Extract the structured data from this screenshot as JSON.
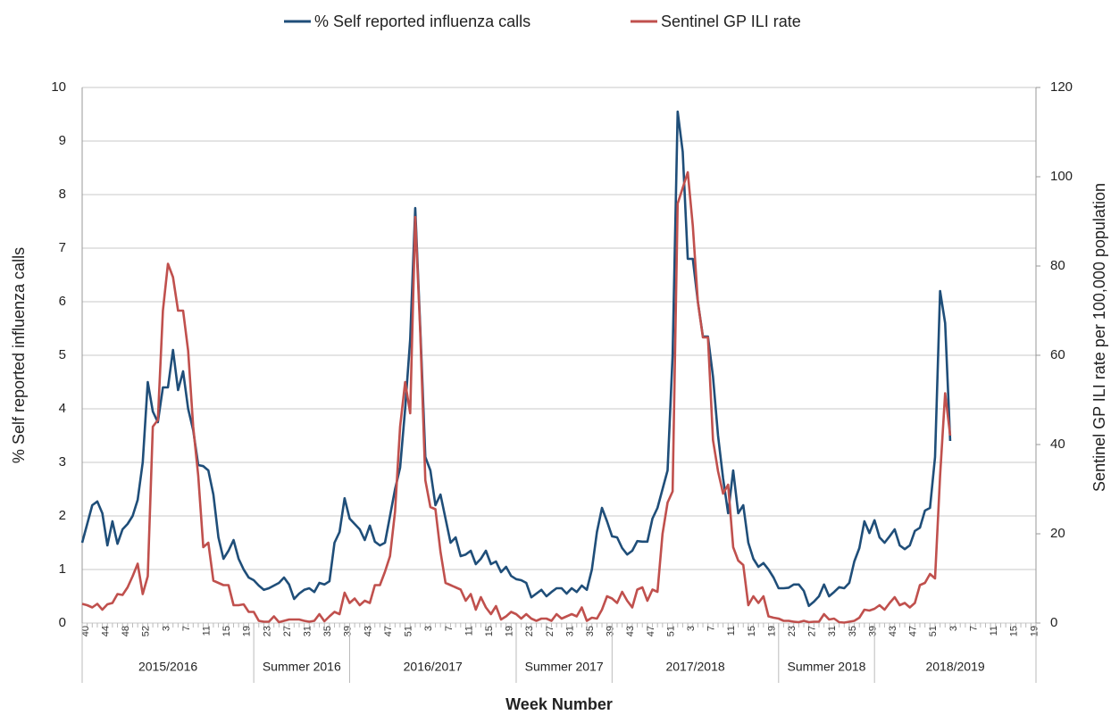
{
  "chart_data": {
    "type": "line",
    "x_label": "Week Number",
    "y_label": "% Self reported influenza calls",
    "y2_label": "Sentinel GP ILI rate per 100,000 population",
    "categories": [
      "40",
      null,
      null,
      null,
      "44",
      null,
      null,
      null,
      "48",
      null,
      null,
      null,
      "52",
      null,
      null,
      null,
      "3",
      null,
      null,
      null,
      "7",
      null,
      null,
      null,
      "11",
      null,
      null,
      null,
      "15",
      null,
      null,
      null,
      "19",
      null,
      null,
      null,
      "23",
      null,
      null,
      null,
      "27",
      null,
      null,
      null,
      "31",
      null,
      null,
      null,
      "35",
      null,
      null,
      null,
      "39",
      null,
      null,
      null,
      "43",
      null,
      null,
      null,
      "47",
      null,
      null,
      null,
      "51",
      null,
      null,
      null,
      "3",
      null,
      null,
      null,
      "7",
      null,
      null,
      null,
      "11",
      null,
      null,
      null,
      "15",
      null,
      null,
      null,
      "19",
      null,
      null,
      null,
      "23",
      null,
      null,
      null,
      "27",
      null,
      null,
      null,
      "31",
      null,
      null,
      null,
      "35",
      null,
      null,
      null,
      "39",
      null,
      null,
      null,
      "43",
      null,
      null,
      null,
      "47",
      null,
      null,
      null,
      "51",
      null,
      null,
      null,
      "3",
      null,
      null,
      null,
      "7",
      null,
      null,
      null,
      "11",
      null,
      null,
      null,
      "15",
      null,
      null,
      null,
      "19",
      null,
      null,
      null,
      "23",
      null,
      null,
      null,
      "27",
      null,
      null,
      null,
      "31",
      null,
      null,
      null,
      "35",
      null,
      null,
      null,
      "39",
      null,
      null,
      null,
      "43",
      null,
      null,
      null,
      "47",
      null,
      null,
      null,
      "51",
      null,
      null,
      null,
      "3",
      null,
      null,
      null,
      "7",
      null,
      null,
      null,
      "11",
      null,
      null,
      null,
      "15",
      null,
      null,
      null,
      "19"
    ],
    "category_groups": [
      "2015/2016",
      "Summer 2016",
      "2016/2017",
      "Summer 2017",
      "2017/2018",
      "Summer 2018",
      "2018/2019"
    ],
    "series": [
      {
        "name": "% Self reported influenza calls",
        "color": "#1f4e79",
        "axis": "y",
        "values": [
          1.5,
          1.85,
          2.2,
          2.27,
          2.05,
          1.45,
          1.9,
          1.48,
          1.75,
          1.85,
          2.0,
          2.3,
          3.0,
          4.5,
          3.95,
          3.75,
          4.4,
          4.4,
          5.1,
          4.35,
          4.7,
          4.0,
          3.6,
          2.95,
          2.93,
          2.85,
          2.4,
          1.6,
          1.2,
          1.35,
          1.55,
          1.2,
          1.0,
          0.85,
          0.8,
          0.7,
          0.62,
          0.65,
          0.7,
          0.75,
          0.85,
          0.72,
          0.45,
          0.55,
          0.62,
          0.65,
          0.58,
          0.75,
          0.72,
          0.78,
          1.5,
          1.7,
          2.33,
          1.95,
          1.85,
          1.75,
          1.55,
          1.82,
          1.52,
          1.45,
          1.5,
          2.0,
          2.5,
          2.9,
          4.0,
          5.3,
          7.75,
          5.5,
          3.1,
          2.85,
          2.2,
          2.4,
          1.95,
          1.5,
          1.6,
          1.25,
          1.28,
          1.35,
          1.1,
          1.2,
          1.35,
          1.1,
          1.15,
          0.95,
          1.05,
          0.88,
          0.82,
          0.8,
          0.75,
          0.48,
          0.55,
          0.62,
          0.5,
          0.58,
          0.65,
          0.65,
          0.55,
          0.65,
          0.58,
          0.7,
          0.62,
          1.0,
          1.7,
          2.15,
          1.9,
          1.62,
          1.6,
          1.4,
          1.28,
          1.35,
          1.53,
          1.52,
          1.52,
          1.95,
          2.15,
          2.5,
          2.85,
          5.0,
          9.55,
          8.8,
          6.8,
          6.8,
          6.0,
          5.35,
          5.35,
          4.6,
          3.5,
          2.7,
          2.05,
          2.85,
          2.05,
          2.2,
          1.5,
          1.2,
          1.05,
          1.12,
          1.0,
          0.85,
          0.65,
          0.65,
          0.66,
          0.72,
          0.72,
          0.6,
          0.32,
          0.4,
          0.5,
          0.72,
          0.5,
          0.58,
          0.67,
          0.65,
          0.75,
          1.15,
          1.4,
          1.9,
          1.68,
          1.92,
          1.6,
          1.5,
          1.62,
          1.75,
          1.45,
          1.38,
          1.45,
          1.72,
          1.78,
          2.1,
          2.15,
          3.1,
          6.2,
          5.6,
          3.4,
          null,
          null,
          null,
          null,
          null,
          null,
          null,
          null,
          null,
          null,
          null,
          null,
          null,
          null,
          null,
          null
        ]
      },
      {
        "name": "Sentinel GP ILI rate",
        "color": "#c0504d",
        "axis": "y2",
        "values": [
          4.3,
          4.0,
          3.5,
          4.3,
          3.0,
          4.2,
          4.5,
          6.5,
          6.3,
          8.0,
          10.5,
          13.3,
          6.5,
          10.5,
          44,
          45.5,
          70,
          80.5,
          77.5,
          70,
          70,
          61,
          44,
          33,
          17,
          18,
          9.5,
          9,
          8.5,
          8.5,
          4,
          4,
          4.2,
          2.5,
          2.5,
          0.5,
          0.3,
          0.3,
          1.5,
          0.2,
          0.5,
          0.8,
          0.8,
          0.8,
          0.5,
          0.3,
          0.5,
          2.0,
          0.4,
          1.5,
          2.5,
          2.0,
          6.8,
          4.5,
          5.5,
          4.0,
          5.0,
          4.5,
          8.5,
          8.5,
          11.5,
          15,
          25,
          44,
          54,
          47,
          91,
          65,
          32,
          26,
          25.5,
          16,
          9,
          8.5,
          8,
          7.5,
          5,
          6.5,
          3,
          5.8,
          3.5,
          2,
          3.8,
          0.8,
          1.5,
          2.5,
          2,
          1,
          2,
          1,
          0.5,
          1,
          1,
          0.5,
          2,
          1,
          1.5,
          2,
          1.5,
          3.5,
          0.5,
          1.2,
          1,
          3,
          6,
          5.5,
          4.5,
          7,
          5,
          3.5,
          7.5,
          8,
          5,
          7.5,
          7,
          20,
          27,
          29.5,
          94,
          97.5,
          101,
          89,
          72,
          64,
          64,
          41,
          34,
          29,
          31,
          17,
          14,
          13,
          4,
          6,
          4.5,
          6,
          1.5,
          1.2,
          1,
          0.5,
          0.5,
          0.3,
          0.2,
          0.5,
          0.2,
          0.3,
          0.3,
          2,
          0.8,
          1.0,
          0.2,
          0.1,
          0.3,
          0.5,
          1.2,
          3,
          2.8,
          3.2,
          4,
          3,
          4.5,
          5.8,
          4,
          4.5,
          3.5,
          4.5,
          8.5,
          9,
          11,
          10,
          33,
          51.5,
          42,
          null,
          null,
          null,
          null,
          null,
          null,
          null,
          null,
          null,
          null,
          null,
          null,
          null,
          null,
          null,
          null
        ]
      }
    ],
    "ylim": [
      0,
      10
    ],
    "yticks": [
      0,
      1,
      2,
      3,
      4,
      5,
      6,
      7,
      8,
      9,
      10
    ],
    "y2lim": [
      0,
      120
    ],
    "y2ticks": [
      0,
      20,
      40,
      60,
      80,
      100,
      120
    ],
    "grid": true,
    "legend": "top"
  }
}
